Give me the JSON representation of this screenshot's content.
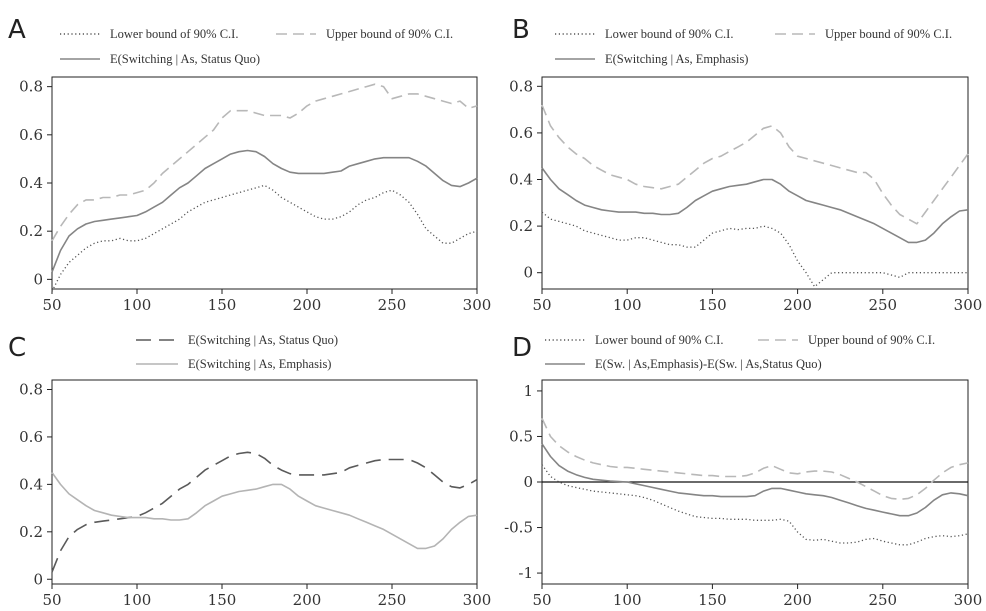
{
  "chart_data": [
    {
      "panel_label": "A",
      "type": "line",
      "x": [
        50,
        55,
        60,
        65,
        70,
        75,
        80,
        85,
        90,
        95,
        100,
        105,
        110,
        115,
        120,
        125,
        130,
        135,
        140,
        145,
        150,
        155,
        160,
        165,
        170,
        175,
        180,
        185,
        190,
        195,
        200,
        205,
        210,
        215,
        220,
        225,
        230,
        235,
        240,
        245,
        250,
        255,
        260,
        265,
        270,
        275,
        280,
        285,
        290,
        295,
        300
      ],
      "xticks": [
        "50",
        "100",
        "150",
        "200",
        "250",
        "300"
      ],
      "yticks": [
        "0",
        "0.2",
        "0.4",
        "0.6",
        "0.8"
      ],
      "xlim": [
        50,
        300
      ],
      "ylim": [
        -0.04,
        0.84
      ],
      "legend": [
        "Lower bound of 90% C.I.",
        "Upper bound of 90% C.I.",
        "E(Switching  |  As, Status Quo)"
      ],
      "series": [
        {
          "name": "Lower bound of 90% C.I.",
          "style": "dotted",
          "color": "#555555",
          "values": [
            -0.05,
            0.02,
            0.07,
            0.1,
            0.13,
            0.15,
            0.16,
            0.16,
            0.17,
            0.16,
            0.16,
            0.17,
            0.19,
            0.21,
            0.23,
            0.25,
            0.28,
            0.3,
            0.32,
            0.33,
            0.34,
            0.35,
            0.36,
            0.37,
            0.38,
            0.39,
            0.37,
            0.34,
            0.32,
            0.3,
            0.28,
            0.26,
            0.25,
            0.25,
            0.26,
            0.28,
            0.31,
            0.33,
            0.34,
            0.36,
            0.37,
            0.35,
            0.32,
            0.27,
            0.21,
            0.18,
            0.15,
            0.15,
            0.17,
            0.19,
            0.2
          ]
        },
        {
          "name": "Upper bound of 90% C.I.",
          "style": "dashed",
          "color": "#b8b8b8",
          "values": [
            0.16,
            0.22,
            0.27,
            0.31,
            0.33,
            0.33,
            0.34,
            0.34,
            0.35,
            0.35,
            0.36,
            0.37,
            0.4,
            0.44,
            0.47,
            0.5,
            0.53,
            0.56,
            0.59,
            0.62,
            0.67,
            0.7,
            0.7,
            0.7,
            0.69,
            0.68,
            0.68,
            0.68,
            0.67,
            0.69,
            0.72,
            0.74,
            0.75,
            0.76,
            0.77,
            0.78,
            0.79,
            0.8,
            0.81,
            0.8,
            0.75,
            0.76,
            0.77,
            0.77,
            0.76,
            0.75,
            0.74,
            0.73,
            0.74,
            0.71,
            0.72
          ]
        },
        {
          "name": "E(Switching  |  As, Status Quo)",
          "style": "solid",
          "color": "#858585",
          "values": [
            0.03,
            0.12,
            0.18,
            0.21,
            0.23,
            0.24,
            0.245,
            0.25,
            0.255,
            0.26,
            0.265,
            0.28,
            0.3,
            0.32,
            0.35,
            0.38,
            0.4,
            0.43,
            0.46,
            0.48,
            0.5,
            0.52,
            0.53,
            0.535,
            0.53,
            0.51,
            0.48,
            0.46,
            0.445,
            0.44,
            0.44,
            0.44,
            0.44,
            0.445,
            0.45,
            0.47,
            0.48,
            0.49,
            0.5,
            0.505,
            0.505,
            0.505,
            0.505,
            0.49,
            0.47,
            0.44,
            0.41,
            0.39,
            0.385,
            0.4,
            0.42
          ]
        }
      ]
    },
    {
      "panel_label": "B",
      "type": "line",
      "x": [
        50,
        55,
        60,
        65,
        70,
        75,
        80,
        85,
        90,
        95,
        100,
        105,
        110,
        115,
        120,
        125,
        130,
        135,
        140,
        145,
        150,
        155,
        160,
        165,
        170,
        175,
        180,
        185,
        190,
        195,
        200,
        205,
        210,
        215,
        220,
        225,
        230,
        235,
        240,
        245,
        250,
        255,
        260,
        265,
        270,
        275,
        280,
        285,
        290,
        295,
        300
      ],
      "xticks": [
        "50",
        "100",
        "150",
        "200",
        "250",
        "300"
      ],
      "yticks": [
        "0",
        "0.2",
        "0.4",
        "0.6",
        "0.8"
      ],
      "xlim": [
        50,
        300
      ],
      "ylim": [
        -0.07,
        0.84
      ],
      "legend": [
        "Lower bound of 90% C.I.",
        "Upper bound of 90% C.I.",
        "E(Switching  |  As, Emphasis)"
      ],
      "series": [
        {
          "name": "Lower bound of 90% C.I.",
          "style": "dotted",
          "color": "#555555",
          "values": [
            0.26,
            0.23,
            0.22,
            0.21,
            0.2,
            0.18,
            0.17,
            0.16,
            0.15,
            0.14,
            0.14,
            0.15,
            0.15,
            0.14,
            0.13,
            0.12,
            0.12,
            0.11,
            0.11,
            0.14,
            0.17,
            0.18,
            0.19,
            0.185,
            0.19,
            0.19,
            0.2,
            0.19,
            0.17,
            0.12,
            0.05,
            0.0,
            -0.06,
            -0.03,
            0.0,
            0.0,
            0.0,
            0.0,
            0.0,
            0.0,
            0.0,
            -0.01,
            -0.02,
            0.0,
            0.0,
            0.0,
            0.0,
            0.0,
            0.0,
            0.0,
            0.0
          ]
        },
        {
          "name": "Upper bound of 90% C.I.",
          "style": "dashed",
          "color": "#b8b8b8",
          "values": [
            0.72,
            0.63,
            0.58,
            0.54,
            0.51,
            0.49,
            0.46,
            0.44,
            0.42,
            0.41,
            0.4,
            0.38,
            0.37,
            0.365,
            0.36,
            0.37,
            0.38,
            0.41,
            0.44,
            0.47,
            0.49,
            0.5,
            0.52,
            0.54,
            0.56,
            0.59,
            0.62,
            0.63,
            0.6,
            0.54,
            0.5,
            0.49,
            0.48,
            0.47,
            0.46,
            0.45,
            0.44,
            0.43,
            0.43,
            0.4,
            0.34,
            0.29,
            0.25,
            0.23,
            0.21,
            0.26,
            0.31,
            0.36,
            0.41,
            0.46,
            0.51
          ]
        },
        {
          "name": "E(Switching  |  As, Emphasis)",
          "style": "solid",
          "color": "#858585",
          "values": [
            0.45,
            0.4,
            0.36,
            0.335,
            0.31,
            0.29,
            0.28,
            0.27,
            0.265,
            0.26,
            0.26,
            0.26,
            0.255,
            0.255,
            0.25,
            0.25,
            0.255,
            0.28,
            0.31,
            0.33,
            0.35,
            0.36,
            0.37,
            0.375,
            0.38,
            0.39,
            0.4,
            0.4,
            0.38,
            0.35,
            0.33,
            0.31,
            0.3,
            0.29,
            0.28,
            0.27,
            0.255,
            0.24,
            0.225,
            0.21,
            0.19,
            0.17,
            0.15,
            0.13,
            0.13,
            0.14,
            0.17,
            0.21,
            0.24,
            0.265,
            0.27
          ]
        }
      ]
    },
    {
      "panel_label": "C",
      "type": "line",
      "x": [
        50,
        55,
        60,
        65,
        70,
        75,
        80,
        85,
        90,
        95,
        100,
        105,
        110,
        115,
        120,
        125,
        130,
        135,
        140,
        145,
        150,
        155,
        160,
        165,
        170,
        175,
        180,
        185,
        190,
        195,
        200,
        205,
        210,
        215,
        220,
        225,
        230,
        235,
        240,
        245,
        250,
        255,
        260,
        265,
        270,
        275,
        280,
        285,
        290,
        295,
        300
      ],
      "xticks": [
        "50",
        "100",
        "150",
        "200",
        "250",
        "300"
      ],
      "yticks": [
        "0",
        "0.2",
        "0.4",
        "0.6",
        "0.8"
      ],
      "xlim": [
        50,
        300
      ],
      "ylim": [
        -0.02,
        0.84
      ],
      "legend": [
        "E(Switching  |  As, Status Quo)",
        "E(Switching  |  As, Emphasis)"
      ],
      "series": [
        {
          "name": "E(Switching  |  As, Status Quo)",
          "style": "longdash",
          "color": "#5a5a5a",
          "values": [
            0.03,
            0.12,
            0.18,
            0.21,
            0.23,
            0.24,
            0.245,
            0.25,
            0.255,
            0.26,
            0.265,
            0.28,
            0.3,
            0.32,
            0.35,
            0.38,
            0.4,
            0.43,
            0.46,
            0.48,
            0.5,
            0.52,
            0.53,
            0.535,
            0.53,
            0.51,
            0.48,
            0.46,
            0.445,
            0.44,
            0.44,
            0.44,
            0.44,
            0.445,
            0.45,
            0.47,
            0.48,
            0.49,
            0.5,
            0.505,
            0.505,
            0.505,
            0.505,
            0.49,
            0.47,
            0.44,
            0.41,
            0.39,
            0.385,
            0.4,
            0.42
          ]
        },
        {
          "name": "E(Switching  |  As, Emphasis)",
          "style": "solid",
          "color": "#b4b4b4",
          "values": [
            0.45,
            0.4,
            0.36,
            0.335,
            0.31,
            0.29,
            0.28,
            0.27,
            0.265,
            0.26,
            0.26,
            0.26,
            0.255,
            0.255,
            0.25,
            0.25,
            0.255,
            0.28,
            0.31,
            0.33,
            0.35,
            0.36,
            0.37,
            0.375,
            0.38,
            0.39,
            0.4,
            0.4,
            0.38,
            0.35,
            0.33,
            0.31,
            0.3,
            0.29,
            0.28,
            0.27,
            0.255,
            0.24,
            0.225,
            0.21,
            0.19,
            0.17,
            0.15,
            0.13,
            0.13,
            0.14,
            0.17,
            0.21,
            0.24,
            0.265,
            0.27
          ]
        }
      ]
    },
    {
      "panel_label": "D",
      "type": "line",
      "x": [
        50,
        55,
        60,
        65,
        70,
        75,
        80,
        85,
        90,
        95,
        100,
        105,
        110,
        115,
        120,
        125,
        130,
        135,
        140,
        145,
        150,
        155,
        160,
        165,
        170,
        175,
        180,
        185,
        190,
        195,
        200,
        205,
        210,
        215,
        220,
        225,
        230,
        235,
        240,
        245,
        250,
        255,
        260,
        265,
        270,
        275,
        280,
        285,
        290,
        295,
        300
      ],
      "xticks": [
        "50",
        "100",
        "150",
        "200",
        "250",
        "300"
      ],
      "yticks": [
        "-1",
        "-0.5",
        "0",
        "0.5",
        "1"
      ],
      "xlim": [
        50,
        300
      ],
      "ylim": [
        -1.12,
        1.12
      ],
      "reference_line": 0,
      "legend": [
        "Lower bound of 90% C.I.",
        "Upper bound of 90% C.I.",
        "E(Sw. | As,Emphasis)-E(Sw. | As,Status Quo)"
      ],
      "series": [
        {
          "name": "Lower bound of 90% C.I.",
          "style": "dotted",
          "color": "#555555",
          "values": [
            0.19,
            0.06,
            0.0,
            -0.04,
            -0.06,
            -0.08,
            -0.1,
            -0.11,
            -0.12,
            -0.13,
            -0.14,
            -0.15,
            -0.17,
            -0.2,
            -0.24,
            -0.28,
            -0.32,
            -0.35,
            -0.38,
            -0.39,
            -0.4,
            -0.4,
            -0.41,
            -0.41,
            -0.41,
            -0.42,
            -0.42,
            -0.42,
            -0.41,
            -0.43,
            -0.55,
            -0.63,
            -0.64,
            -0.63,
            -0.65,
            -0.67,
            -0.67,
            -0.66,
            -0.63,
            -0.62,
            -0.65,
            -0.67,
            -0.69,
            -0.69,
            -0.66,
            -0.62,
            -0.6,
            -0.59,
            -0.6,
            -0.59,
            -0.57
          ]
        },
        {
          "name": "Upper bound of 90% C.I.",
          "style": "dashed",
          "color": "#b8b8b8",
          "values": [
            0.7,
            0.5,
            0.4,
            0.33,
            0.28,
            0.24,
            0.21,
            0.19,
            0.17,
            0.16,
            0.16,
            0.15,
            0.14,
            0.13,
            0.12,
            0.11,
            0.1,
            0.09,
            0.08,
            0.07,
            0.07,
            0.06,
            0.06,
            0.06,
            0.07,
            0.1,
            0.15,
            0.18,
            0.14,
            0.1,
            0.09,
            0.11,
            0.12,
            0.12,
            0.11,
            0.08,
            0.04,
            0.0,
            -0.05,
            -0.1,
            -0.15,
            -0.18,
            -0.19,
            -0.18,
            -0.14,
            -0.07,
            0.02,
            0.1,
            0.16,
            0.19,
            0.21
          ]
        },
        {
          "name": "E(Sw. | As,Emphasis)-E(Sw. | As,Status Quo)",
          "style": "solid",
          "color": "#858585",
          "values": [
            0.42,
            0.28,
            0.18,
            0.12,
            0.08,
            0.05,
            0.03,
            0.02,
            0.01,
            0.005,
            0.0,
            -0.02,
            -0.04,
            -0.06,
            -0.08,
            -0.1,
            -0.12,
            -0.13,
            -0.14,
            -0.15,
            -0.15,
            -0.16,
            -0.16,
            -0.16,
            -0.16,
            -0.15,
            -0.1,
            -0.07,
            -0.07,
            -0.09,
            -0.11,
            -0.13,
            -0.14,
            -0.15,
            -0.17,
            -0.2,
            -0.23,
            -0.26,
            -0.29,
            -0.31,
            -0.33,
            -0.35,
            -0.37,
            -0.37,
            -0.34,
            -0.28,
            -0.2,
            -0.14,
            -0.12,
            -0.13,
            -0.15
          ]
        }
      ]
    }
  ]
}
